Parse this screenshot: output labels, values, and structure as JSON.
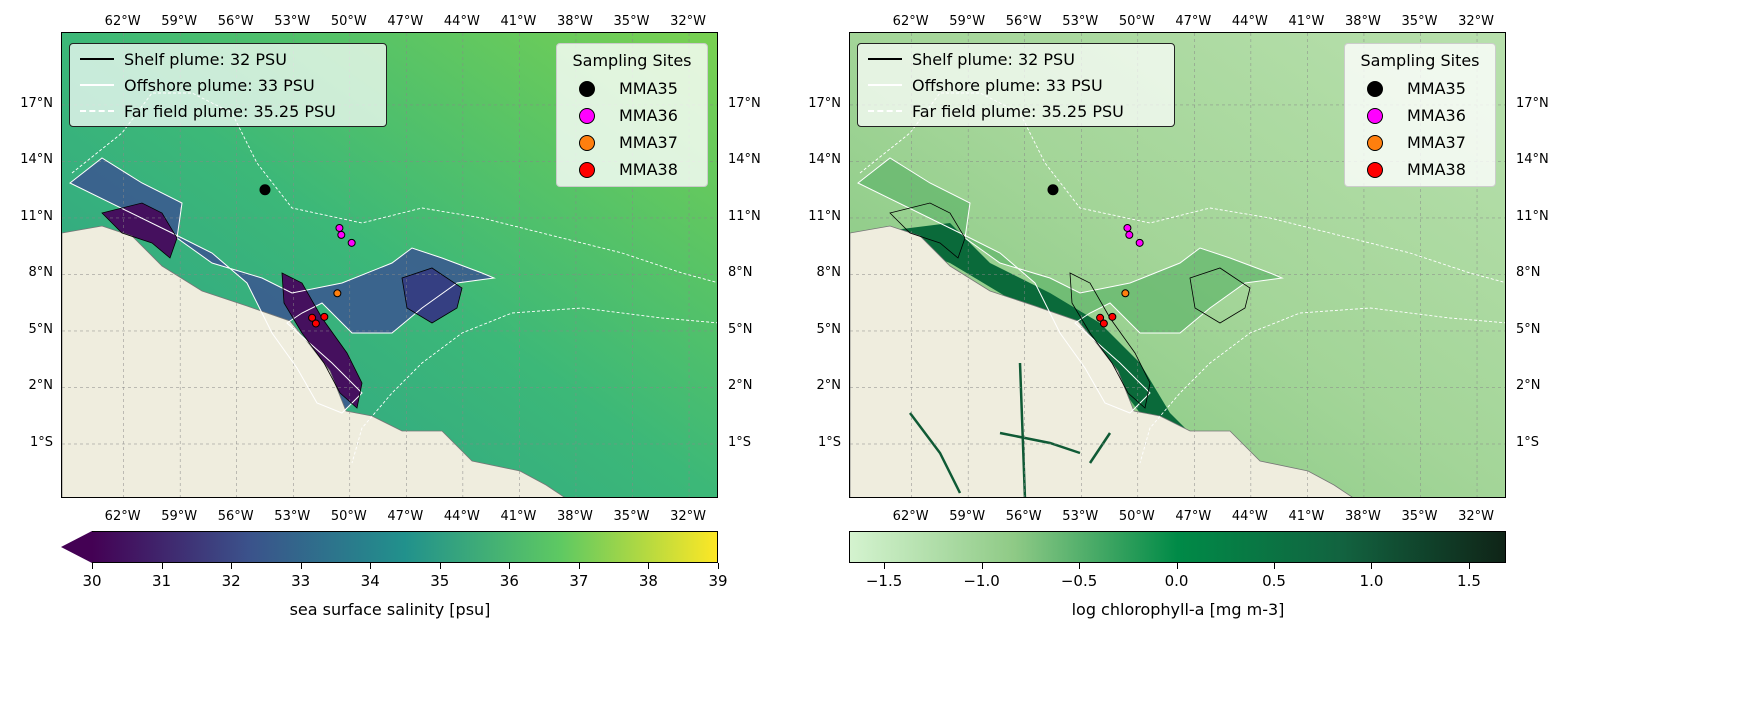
{
  "panels": [
    {
      "name": "salinity",
      "colorbar": {
        "label": "sea surface salinity [psu]",
        "ticks": [
          "30",
          "31",
          "32",
          "33",
          "34",
          "35",
          "36",
          "37",
          "38",
          "39"
        ],
        "range": [
          30,
          39
        ],
        "extend": "min",
        "colors": [
          "#440154",
          "#3b528b",
          "#21918c",
          "#5ec962",
          "#fde725"
        ]
      }
    },
    {
      "name": "chlorophyll",
      "colorbar": {
        "label": "log chlorophyll-a [mg m-3]",
        "ticks": [
          "−1.5",
          "−1.0",
          "−0.5",
          "0.0",
          "0.5",
          "1.0",
          "1.5"
        ],
        "tick_values": [
          -1.5,
          -1.0,
          -0.5,
          0.0,
          0.5,
          1.0,
          1.5
        ],
        "range": [
          -1.68,
          1.69
        ],
        "colors": [
          "#d4f3cf",
          "#8fca86",
          "#008a47",
          "#126340",
          "#0f2417"
        ]
      }
    }
  ],
  "axes": {
    "lon_ticks": [
      "62°W",
      "59°W",
      "56°W",
      "53°W",
      "50°W",
      "47°W",
      "44°W",
      "41°W",
      "38°W",
      "35°W",
      "32°W"
    ],
    "lat_ticks": [
      "17°N",
      "14°N",
      "11°N",
      "8°N",
      "5°N",
      "2°N",
      "1°S"
    ]
  },
  "plume_legend": [
    {
      "label": "Shelf plume: 32 PSU",
      "style": "solid-black"
    },
    {
      "label": "Offshore plume: 33 PSU",
      "style": "solid-white"
    },
    {
      "label": "Far field plume: 35.25 PSU",
      "style": "dashed-white"
    }
  ],
  "sites_legend": {
    "title": "Sampling Sites",
    "items": [
      {
        "label": "MMA35",
        "color": "#000000"
      },
      {
        "label": "MMA36",
        "color": "#ff00ff"
      },
      {
        "label": "MMA37",
        "color": "#ff7f0e"
      },
      {
        "label": "MMA38",
        "color": "#ff0000"
      }
    ]
  },
  "sites": [
    {
      "site": "MMA35",
      "lon": -54.5,
      "lat": 12.5
    },
    {
      "site": "MMA36",
      "lon": -50.55,
      "lat": 10.47
    },
    {
      "site": "MMA36",
      "lon": -50.45,
      "lat": 10.1
    },
    {
      "site": "MMA36",
      "lon": -49.9,
      "lat": 9.68
    },
    {
      "site": "MMA37",
      "lon": -50.66,
      "lat": 7.0
    },
    {
      "site": "MMA38",
      "lon": -52.0,
      "lat": 5.7
    },
    {
      "site": "MMA38",
      "lon": -51.8,
      "lat": 5.4
    },
    {
      "site": "MMA38",
      "lon": -51.35,
      "lat": 5.75
    }
  ]
}
